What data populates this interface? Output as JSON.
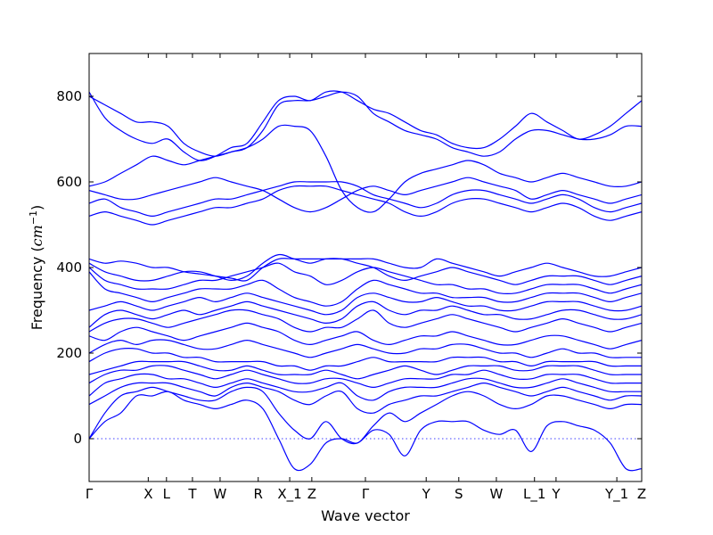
{
  "chart_data": {
    "type": "line",
    "title": "",
    "xlabel": "Wave vector",
    "ylabel": "Frequency (cm⁻¹)",
    "ylabel_prefix": "Frequency (",
    "ylabel_unit": "cm",
    "ylabel_exp": "−1",
    "ylabel_suffix": ")",
    "ylim": [
      -100,
      900
    ],
    "yticks": [
      0,
      200,
      400,
      600,
      800
    ],
    "grid": false,
    "legend": "none",
    "line_color": "#0000ff",
    "zero_line": {
      "value": 0,
      "style": "dotted"
    },
    "high_symmetry_points": [
      {
        "label": "Γ",
        "x": 0.0
      },
      {
        "label": "X",
        "x": 0.107
      },
      {
        "label": "L",
        "x": 0.14
      },
      {
        "label": "T",
        "x": 0.187
      },
      {
        "label": "W",
        "x": 0.237
      },
      {
        "label": "R",
        "x": 0.306
      },
      {
        "label": "X_1",
        "x": 0.363
      },
      {
        "label": "Z",
        "x": 0.403
      },
      {
        "label": "Γ",
        "x": 0.5
      },
      {
        "label": "Y",
        "x": 0.61
      },
      {
        "label": "S",
        "x": 0.669
      },
      {
        "label": "W",
        "x": 0.737
      },
      {
        "label": "L_1",
        "x": 0.806
      },
      {
        "label": "Y",
        "x": 0.845
      },
      {
        "label": "Y_1",
        "x": 0.955
      },
      {
        "label": "Z",
        "x": 1.0
      }
    ],
    "series": [
      {
        "values": [
          0,
          40,
          60,
          100,
          100,
          110,
          90,
          80,
          70,
          80,
          90,
          70,
          0,
          -70,
          -60,
          -10,
          0,
          -10,
          20,
          10,
          -40,
          20,
          40,
          40,
          40,
          20,
          10,
          20,
          -30,
          30,
          40,
          30,
          20,
          -10,
          -70,
          -70
        ]
      },
      {
        "values": [
          0,
          60,
          100,
          110,
          120,
          110,
          100,
          90,
          90,
          110,
          120,
          110,
          60,
          20,
          0,
          40,
          0,
          -10,
          30,
          60,
          40,
          60,
          80,
          100,
          110,
          100,
          80,
          70,
          80,
          100,
          100,
          90,
          80,
          70,
          80,
          80
        ]
      },
      {
        "values": [
          80,
          100,
          120,
          130,
          130,
          130,
          120,
          110,
          100,
          120,
          130,
          120,
          110,
          90,
          80,
          100,
          110,
          70,
          60,
          80,
          90,
          100,
          100,
          110,
          120,
          130,
          120,
          110,
          100,
          110,
          120,
          110,
          100,
          90,
          100,
          100
        ]
      },
      {
        "values": [
          100,
          130,
          140,
          150,
          150,
          140,
          140,
          130,
          120,
          130,
          140,
          130,
          120,
          110,
          110,
          120,
          130,
          100,
          90,
          110,
          120,
          120,
          120,
          130,
          140,
          140,
          130,
          120,
          120,
          130,
          140,
          130,
          120,
          110,
          110,
          110
        ]
      },
      {
        "values": [
          130,
          150,
          160,
          160,
          170,
          170,
          160,
          150,
          140,
          150,
          160,
          150,
          140,
          130,
          130,
          140,
          140,
          130,
          120,
          130,
          140,
          140,
          140,
          150,
          150,
          160,
          150,
          140,
          140,
          150,
          150,
          150,
          140,
          130,
          130,
          130
        ]
      },
      {
        "values": [
          150,
          160,
          170,
          180,
          180,
          180,
          180,
          170,
          160,
          160,
          170,
          160,
          150,
          150,
          150,
          160,
          150,
          140,
          150,
          160,
          170,
          160,
          150,
          160,
          170,
          170,
          170,
          160,
          160,
          170,
          170,
          170,
          160,
          150,
          150,
          150
        ]
      },
      {
        "values": [
          180,
          200,
          210,
          210,
          200,
          200,
          190,
          190,
          180,
          180,
          180,
          180,
          170,
          170,
          160,
          170,
          170,
          180,
          190,
          180,
          180,
          180,
          180,
          190,
          190,
          190,
          180,
          180,
          170,
          180,
          180,
          180,
          180,
          170,
          170,
          170
        ]
      },
      {
        "values": [
          200,
          220,
          230,
          220,
          230,
          230,
          220,
          210,
          210,
          220,
          230,
          220,
          210,
          200,
          190,
          200,
          210,
          220,
          210,
          200,
          200,
          210,
          210,
          220,
          220,
          210,
          200,
          200,
          190,
          200,
          210,
          200,
          200,
          190,
          190,
          190
        ]
      },
      {
        "values": [
          240,
          230,
          250,
          260,
          250,
          240,
          230,
          240,
          250,
          260,
          270,
          260,
          250,
          230,
          220,
          230,
          240,
          250,
          230,
          220,
          230,
          240,
          240,
          250,
          240,
          230,
          220,
          220,
          230,
          240,
          240,
          230,
          220,
          210,
          220,
          230
        ]
      },
      {
        "values": [
          250,
          270,
          280,
          280,
          270,
          260,
          270,
          280,
          290,
          300,
          300,
          290,
          280,
          260,
          250,
          260,
          260,
          280,
          300,
          270,
          260,
          270,
          280,
          290,
          280,
          270,
          260,
          250,
          260,
          270,
          280,
          270,
          260,
          250,
          260,
          270
        ]
      },
      {
        "values": [
          260,
          290,
          300,
          290,
          280,
          290,
          300,
          290,
          300,
          310,
          320,
          310,
          300,
          290,
          280,
          270,
          280,
          310,
          320,
          300,
          290,
          300,
          300,
          310,
          300,
          290,
          290,
          280,
          280,
          290,
          300,
          300,
          290,
          280,
          280,
          290
        ]
      },
      {
        "values": [
          300,
          310,
          320,
          310,
          300,
          310,
          320,
          330,
          320,
          330,
          340,
          330,
          320,
          310,
          300,
          290,
          300,
          330,
          340,
          330,
          320,
          320,
          330,
          320,
          310,
          310,
          300,
          300,
          310,
          320,
          320,
          320,
          310,
          300,
          300,
          310
        ]
      },
      {
        "values": [
          390,
          350,
          340,
          330,
          320,
          330,
          340,
          350,
          350,
          350,
          360,
          370,
          350,
          330,
          320,
          310,
          320,
          350,
          370,
          360,
          350,
          340,
          340,
          330,
          330,
          330,
          320,
          320,
          330,
          340,
          340,
          340,
          330,
          320,
          330,
          340
        ]
      },
      {
        "values": [
          400,
          370,
          360,
          350,
          350,
          350,
          360,
          370,
          370,
          380,
          390,
          400,
          410,
          390,
          380,
          360,
          370,
          390,
          400,
          390,
          380,
          370,
          360,
          360,
          350,
          350,
          340,
          340,
          350,
          360,
          360,
          360,
          350,
          340,
          350,
          360
        ]
      },
      {
        "values": [
          410,
          390,
          380,
          370,
          370,
          380,
          390,
          390,
          380,
          370,
          380,
          410,
          430,
          420,
          410,
          420,
          420,
          410,
          400,
          380,
          370,
          380,
          390,
          400,
          390,
          380,
          370,
          360,
          370,
          380,
          380,
          380,
          370,
          360,
          370,
          380
        ]
      },
      {
        "values": [
          420,
          410,
          415,
          410,
          400,
          400,
          390,
          385,
          380,
          375,
          370,
          400,
          420,
          420,
          420,
          420,
          420,
          420,
          420,
          410,
          400,
          400,
          420,
          410,
          400,
          390,
          380,
          390,
          400,
          410,
          400,
          390,
          380,
          380,
          390,
          400
        ]
      },
      {
        "values": [
          520,
          530,
          520,
          510,
          500,
          510,
          520,
          530,
          540,
          540,
          550,
          560,
          580,
          590,
          590,
          590,
          580,
          570,
          560,
          550,
          530,
          520,
          530,
          550,
          560,
          560,
          550,
          540,
          530,
          540,
          550,
          540,
          520,
          510,
          520,
          530
        ]
      },
      {
        "values": [
          550,
          560,
          540,
          530,
          520,
          530,
          540,
          550,
          560,
          560,
          570,
          580,
          590,
          600,
          600,
          600,
          600,
          590,
          570,
          560,
          550,
          540,
          550,
          570,
          580,
          580,
          570,
          560,
          550,
          560,
          570,
          560,
          540,
          530,
          540,
          550
        ]
      },
      {
        "values": [
          580,
          570,
          560,
          560,
          570,
          580,
          590,
          600,
          610,
          600,
          590,
          580,
          560,
          540,
          530,
          540,
          560,
          580,
          590,
          580,
          570,
          580,
          590,
          600,
          610,
          600,
          590,
          580,
          560,
          570,
          580,
          570,
          560,
          550,
          560,
          570
        ]
      },
      {
        "values": [
          590,
          600,
          620,
          640,
          660,
          650,
          640,
          650,
          660,
          670,
          680,
          700,
          730,
          730,
          720,
          660,
          580,
          540,
          530,
          560,
          600,
          620,
          630,
          640,
          650,
          640,
          620,
          610,
          600,
          610,
          620,
          610,
          600,
          590,
          590,
          600
        ]
      },
      {
        "values": [
          800,
          780,
          760,
          740,
          740,
          730,
          690,
          670,
          660,
          670,
          680,
          720,
          780,
          790,
          790,
          800,
          810,
          800,
          760,
          740,
          720,
          710,
          700,
          680,
          670,
          660,
          670,
          700,
          720,
          720,
          710,
          700,
          700,
          710,
          730,
          730
        ]
      },
      {
        "values": [
          810,
          750,
          720,
          700,
          690,
          700,
          670,
          650,
          660,
          680,
          690,
          740,
          790,
          800,
          790,
          810,
          810,
          790,
          770,
          760,
          740,
          720,
          710,
          690,
          680,
          680,
          700,
          730,
          760,
          740,
          720,
          700,
          710,
          730,
          760,
          790
        ]
      }
    ]
  }
}
